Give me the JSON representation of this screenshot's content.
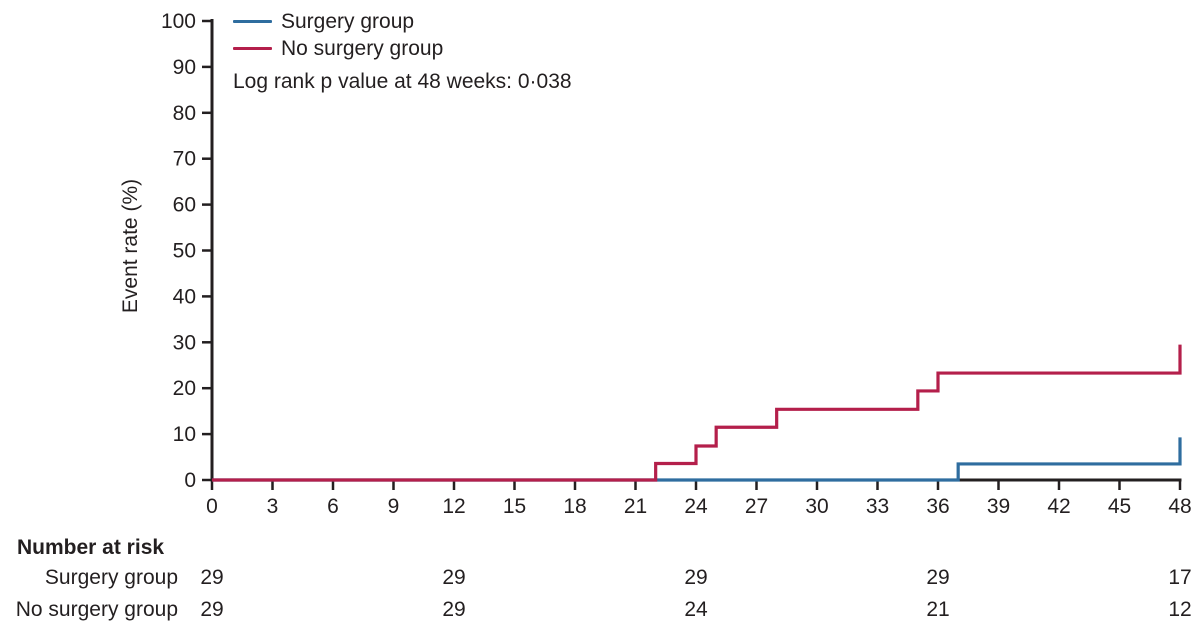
{
  "chart_data": {
    "type": "line",
    "subtype": "kaplan-meier-step",
    "title": "",
    "xlabel": "",
    "ylabel": "Event rate (%)",
    "xlim": [
      0,
      48
    ],
    "ylim": [
      0,
      100
    ],
    "x_ticks": [
      0,
      3,
      6,
      9,
      12,
      15,
      18,
      21,
      24,
      27,
      30,
      33,
      36,
      39,
      42,
      45,
      48
    ],
    "y_ticks": [
      0,
      10,
      20,
      30,
      40,
      50,
      60,
      70,
      80,
      90,
      100
    ],
    "grid": false,
    "legend_position": "top-left",
    "annotation": "Log rank p value at 48 weeks: 0·038",
    "axis_color": "#231f20",
    "series": [
      {
        "name": "Surgery group",
        "color": "#2f6d9f",
        "steps": [
          [
            0,
            0
          ],
          [
            37,
            3.5
          ],
          [
            48,
            9.3
          ]
        ]
      },
      {
        "name": "No surgery group",
        "color": "#b41f4b",
        "steps": [
          [
            0,
            0
          ],
          [
            22,
            3.6
          ],
          [
            24,
            7.4
          ],
          [
            25,
            11.5
          ],
          [
            28,
            15.4
          ],
          [
            35,
            19.4
          ],
          [
            36,
            23.3
          ],
          [
            48,
            29.5
          ]
        ]
      }
    ]
  },
  "risk_table": {
    "title": "Number at risk",
    "weeks": [
      0,
      12,
      24,
      36,
      48
    ],
    "rows": [
      {
        "label": "Surgery group",
        "values": [
          "29",
          "29",
          "29",
          "29",
          "17"
        ]
      },
      {
        "label": "No surgery group",
        "values": [
          "29",
          "29",
          "24",
          "21",
          "12"
        ]
      }
    ]
  }
}
